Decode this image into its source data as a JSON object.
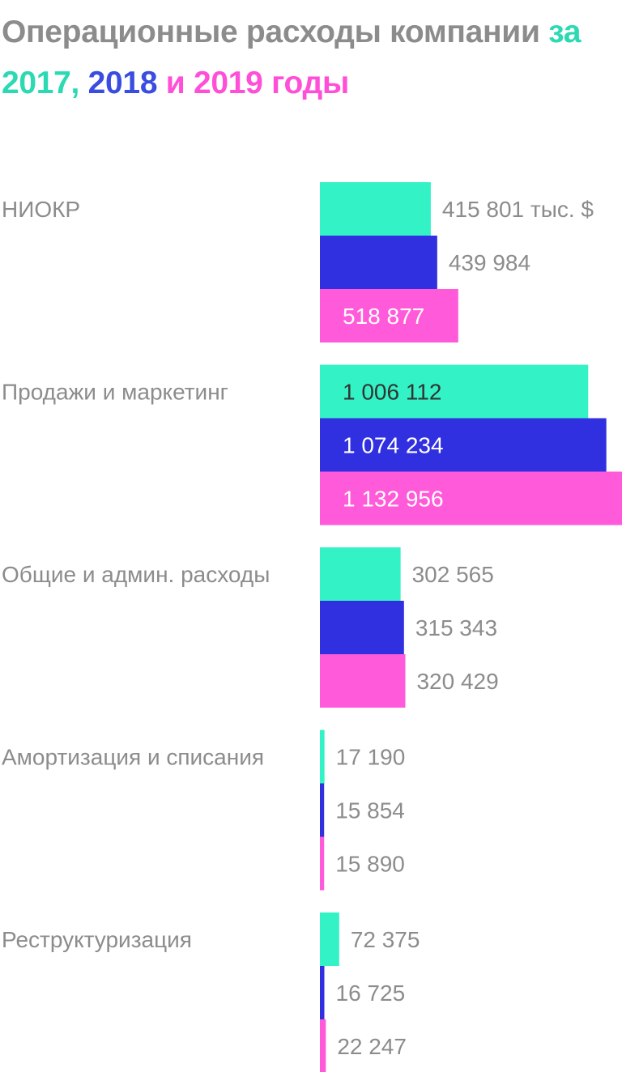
{
  "title": {
    "line1": "Операционные расходы",
    "line2": "компании",
    "line3_prefix": "за ",
    "line3_y2017": "2017,",
    "line3_y2018": "2018",
    "line3_and": " и ",
    "line3_y2019": "2019",
    "line3_suffix": " годы"
  },
  "colors": {
    "2017": "#33f2c6",
    "2018": "#3030e0",
    "2019": "#ff5ad9",
    "label": "#8c8c8c",
    "value_inside": "#333333",
    "value_inside_light": "#ffffff"
  },
  "chart_data": {
    "type": "bar",
    "orientation": "horizontal",
    "unit_note": "тыс. $",
    "categories": [
      "НИОКР",
      "Продажи и маркетинг",
      "Общие и админ. расходы",
      "Амортизация и списания",
      "Реструктуризация"
    ],
    "series": [
      {
        "name": "2017",
        "values": [
          415801,
          1006112,
          302565,
          17190,
          72375
        ]
      },
      {
        "name": "2018",
        "values": [
          439984,
          1074234,
          315343,
          15854,
          16725
        ]
      },
      {
        "name": "2019",
        "values": [
          518877,
          1132956,
          320429,
          15890,
          22247
        ]
      }
    ],
    "value_labels": [
      [
        "415 801 тыс. $",
        "439 984",
        "518 877"
      ],
      [
        "1 006 112",
        "1 074 234",
        "1 132 956"
      ],
      [
        "302 565",
        "315 343",
        "320 429"
      ],
      [
        "17 190",
        "15 854",
        "15 890"
      ],
      [
        "72 375",
        "16 725",
        "22 247"
      ]
    ],
    "xlim": [
      0,
      1132956
    ],
    "legend": "title",
    "grid": false
  }
}
